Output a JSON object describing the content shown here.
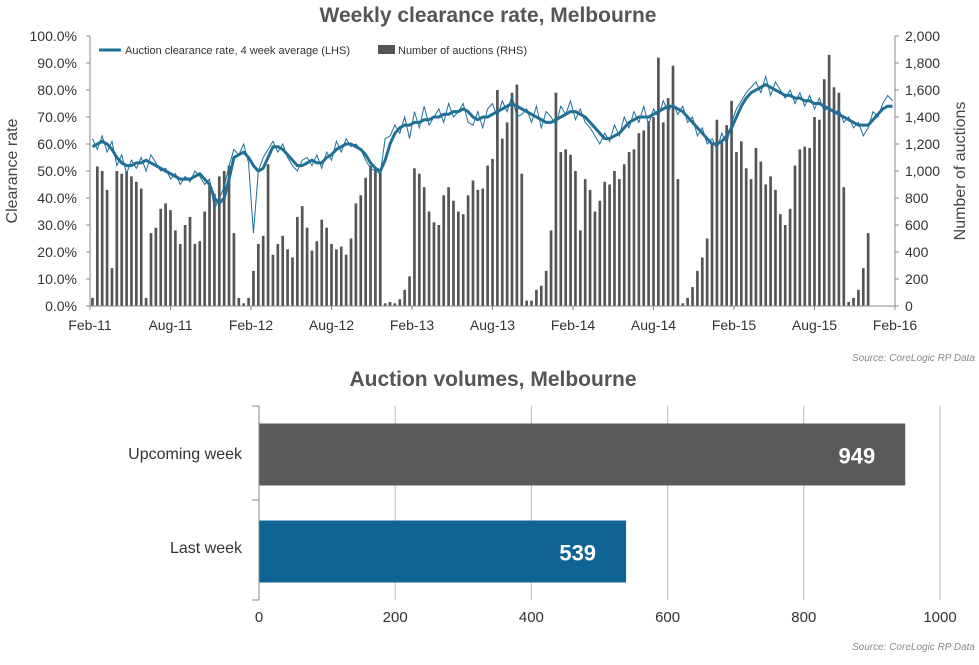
{
  "chart_data": [
    {
      "type": "line",
      "title": "Weekly clearance rate, Melbourne",
      "ylabel": "Clearance rate",
      "y2label": "Number of auctions",
      "ylim": [
        0,
        100
      ],
      "y2lim": [
        0,
        2000
      ],
      "yticks": [
        "0.0%",
        "10.0%",
        "20.0%",
        "30.0%",
        "40.0%",
        "50.0%",
        "60.0%",
        "70.0%",
        "80.0%",
        "90.0%",
        "100.0%"
      ],
      "y2ticks": [
        "0",
        "200",
        "400",
        "600",
        "800",
        "1,000",
        "1,200",
        "1,400",
        "1,600",
        "1,800",
        "2,000"
      ],
      "xticks": [
        "Feb-11",
        "Aug-11",
        "Feb-12",
        "Aug-12",
        "Feb-13",
        "Aug-13",
        "Feb-14",
        "Aug-14",
        "Feb-15",
        "Aug-15",
        "Feb-16"
      ],
      "grid": false,
      "legend": "top-left",
      "source": "Source: CoreLogic  RP Data",
      "series": [
        {
          "name": "Auction clearance rate, 4 week average (LHS)",
          "kind": "line",
          "axis": "left",
          "color": "#1f6f96",
          "values": [
            59,
            60,
            61,
            60,
            58,
            55,
            53,
            52,
            52,
            53,
            53,
            54,
            53,
            52,
            51,
            50,
            49,
            48,
            47,
            47,
            47,
            48,
            49,
            47,
            45,
            40,
            38,
            40,
            47,
            55,
            56,
            57,
            55,
            52,
            50,
            51,
            55,
            59,
            59,
            58,
            56,
            54,
            52,
            52,
            53,
            54,
            53,
            53,
            55,
            56,
            58,
            59,
            60,
            60,
            59,
            58,
            56,
            53,
            51,
            50,
            54,
            60,
            64,
            66,
            67,
            67,
            68,
            68,
            69,
            69,
            70,
            70,
            71,
            71,
            72,
            72,
            73,
            72,
            70,
            69,
            70,
            70,
            71,
            72,
            73,
            74,
            75,
            74,
            73,
            72,
            71,
            70,
            69,
            68,
            68,
            69,
            70,
            71,
            72,
            72,
            71,
            70,
            68,
            66,
            64,
            62,
            62,
            63,
            64,
            66,
            68,
            69,
            70,
            70,
            70,
            71,
            72,
            73,
            74,
            74,
            73,
            72,
            70,
            68,
            66,
            64,
            62,
            60,
            60,
            61,
            63,
            66,
            70,
            74,
            77,
            79,
            80,
            81,
            82,
            81,
            80,
            79,
            78,
            78,
            77,
            77,
            76,
            76,
            75,
            75,
            74,
            73,
            72,
            71,
            70,
            69,
            68,
            67,
            67,
            67,
            69,
            71,
            73,
            74,
            74
          ]
        },
        {
          "name": "Number of auctions (RHS)",
          "kind": "bar",
          "axis": "right",
          "color": "#555555",
          "values": [
            60,
            1034,
            1000,
            860,
            280,
            1000,
            980,
            1000,
            960,
            920,
            870,
            60,
            540,
            580,
            720,
            760,
            710,
            560,
            460,
            600,
            660,
            460,
            480,
            700,
            900,
            830,
            960,
            1000,
            1040,
            540,
            60,
            20,
            60,
            260,
            460,
            520,
            1050,
            380,
            460,
            520,
            420,
            360,
            660,
            740,
            580,
            410,
            480,
            640,
            580,
            460,
            420,
            440,
            380,
            500,
            760,
            820,
            950,
            1040,
            1020,
            990,
            20,
            30,
            20,
            50,
            120,
            220,
            1020,
            980,
            880,
            700,
            620,
            600,
            820,
            880,
            780,
            700,
            680,
            820,
            930,
            860,
            870,
            1040,
            1090,
            1600,
            1240,
            1360,
            1580,
            1640,
            980,
            40,
            40,
            120,
            150,
            260,
            560,
            1580,
            1140,
            1160,
            1120,
            1000,
            560,
            940,
            860,
            700,
            780,
            920,
            900,
            1000,
            940,
            1050,
            1140,
            1160,
            1280,
            1300,
            1370,
            1400,
            1840,
            1360,
            1540,
            1780,
            940,
            20,
            60,
            140,
            260,
            360,
            500,
            1200,
            1380,
            1210,
            1340,
            1520,
            1140,
            1220,
            1020,
            940,
            1170,
            1070,
            900,
            960,
            860,
            680,
            600,
            720,
            1040,
            1160,
            1180,
            1170,
            1400,
            1380,
            1680,
            1860,
            1620,
            1580,
            880,
            30,
            60,
            120,
            280,
            540
          ]
        },
        {
          "name": "Weekly clearance rate",
          "kind": "line",
          "axis": "left",
          "color": "#1f6f96",
          "values": [
            62,
            58,
            63,
            57,
            61,
            52,
            56,
            49,
            54,
            51,
            55,
            50,
            56,
            53,
            50,
            51,
            47,
            49,
            45,
            48,
            46,
            50,
            48,
            45,
            47,
            36,
            40,
            44,
            52,
            58,
            56,
            60,
            53,
            27,
            50,
            55,
            58,
            61,
            57,
            60,
            55,
            52,
            50,
            54,
            55,
            52,
            56,
            51,
            57,
            54,
            61,
            57,
            62,
            59,
            60,
            58,
            54,
            51,
            50,
            49,
            62,
            63,
            67,
            64,
            70,
            62,
            72,
            66,
            74,
            67,
            70,
            73,
            68,
            75,
            70,
            72,
            75,
            68,
            67,
            72,
            66,
            73,
            75,
            70,
            76,
            72,
            78,
            70,
            71,
            73,
            68,
            74,
            66,
            72,
            70,
            67,
            74,
            71,
            76,
            69,
            73,
            68,
            66,
            63,
            60,
            64,
            61,
            67,
            63,
            70,
            66,
            72,
            68,
            74,
            67,
            73,
            70,
            76,
            72,
            75,
            71,
            74,
            68,
            70,
            63,
            66,
            60,
            62,
            58,
            64,
            60,
            68,
            73,
            76,
            79,
            81,
            83,
            79,
            85,
            78,
            83,
            80,
            77,
            80,
            75,
            79,
            74,
            78,
            73,
            77,
            72,
            74,
            71,
            73,
            68,
            70,
            66,
            68,
            63,
            66,
            72,
            70,
            75,
            78,
            76
          ]
        }
      ]
    },
    {
      "type": "bar",
      "orientation": "horizontal",
      "title": "Auction volumes, Melbourne",
      "categories": [
        "Upcoming week",
        "Last week"
      ],
      "values": [
        949,
        539
      ],
      "value_labels": [
        "949",
        "539"
      ],
      "colors": [
        "#5a5a5a",
        "#0f6494"
      ],
      "xlim": [
        0,
        1000
      ],
      "xticks": [
        "0",
        "200",
        "400",
        "600",
        "800",
        "1000"
      ],
      "grid": true,
      "source": "Source: CoreLogic  RP Data"
    }
  ]
}
